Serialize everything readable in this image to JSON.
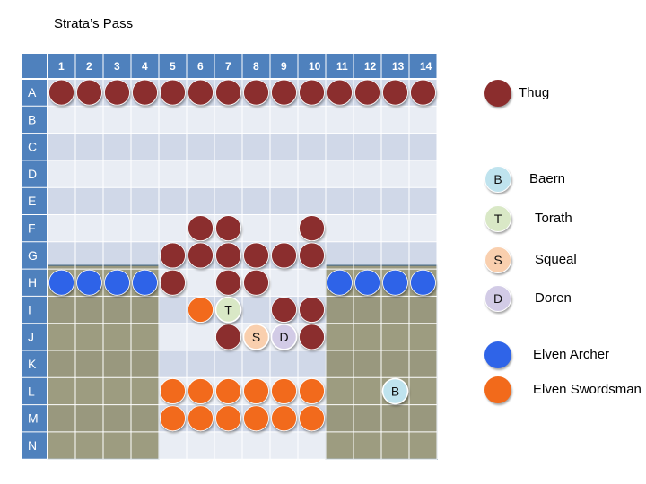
{
  "title": "Strata’s Pass",
  "columns": [
    "1",
    "2",
    "3",
    "4",
    "5",
    "6",
    "7",
    "8",
    "9",
    "10",
    "11",
    "12",
    "13",
    "14"
  ],
  "rows": [
    "A",
    "B",
    "C",
    "D",
    "E",
    "F",
    "G",
    "H",
    "I",
    "J",
    "K",
    "L",
    "M",
    "N"
  ],
  "colors": {
    "header": "#4f81bd",
    "header_text": "#ffffff",
    "band_dark": "#d0d8e8",
    "band_light": "#e9edf4",
    "grid_line": "#ffffff",
    "terrain": "#8c8a66",
    "terrain_border": "#4a6b86",
    "thug": "#8b2d2d",
    "archer": "#2f64e8",
    "swordsman": "#f26a1b",
    "baern": "#bfe3ee",
    "torath": "#d9e8c6",
    "squeal": "#f9cfae",
    "doren": "#d2cbe6"
  },
  "legend": [
    {
      "id": "thug",
      "letter": "",
      "label": "Thug",
      "color": "#8b2d2d"
    },
    {
      "id": "baern",
      "letter": "B",
      "label": "Baern",
      "color": "#bfe3ee"
    },
    {
      "id": "torath",
      "letter": "T",
      "label": "Torath",
      "color": "#d9e8c6"
    },
    {
      "id": "squeal",
      "letter": "S",
      "label": "Squeal",
      "color": "#f9cfae"
    },
    {
      "id": "doren",
      "letter": "D",
      "label": "Doren",
      "color": "#d2cbe6"
    },
    {
      "id": "archer",
      "letter": "",
      "label": "Elven Archer",
      "color": "#2f64e8"
    },
    {
      "id": "swordsman",
      "letter": "",
      "label": "Elven Swordsman",
      "color": "#f26a1b"
    }
  ],
  "terrain": [
    {
      "name": "left-rubble",
      "from_row": "H",
      "to_row": "N",
      "from_col": 1,
      "to_col": 4
    },
    {
      "name": "right-rubble",
      "from_row": "H",
      "to_row": "N",
      "from_col": 11,
      "to_col": 14
    }
  ],
  "tokens": [
    {
      "type": "thug",
      "row": "A",
      "col": 1
    },
    {
      "type": "thug",
      "row": "A",
      "col": 2
    },
    {
      "type": "thug",
      "row": "A",
      "col": 3
    },
    {
      "type": "thug",
      "row": "A",
      "col": 4
    },
    {
      "type": "thug",
      "row": "A",
      "col": 5
    },
    {
      "type": "thug",
      "row": "A",
      "col": 6
    },
    {
      "type": "thug",
      "row": "A",
      "col": 7
    },
    {
      "type": "thug",
      "row": "A",
      "col": 8
    },
    {
      "type": "thug",
      "row": "A",
      "col": 9
    },
    {
      "type": "thug",
      "row": "A",
      "col": 10
    },
    {
      "type": "thug",
      "row": "A",
      "col": 11
    },
    {
      "type": "thug",
      "row": "A",
      "col": 12
    },
    {
      "type": "thug",
      "row": "A",
      "col": 13
    },
    {
      "type": "thug",
      "row": "A",
      "col": 14
    },
    {
      "type": "thug",
      "row": "F",
      "col": 6
    },
    {
      "type": "thug",
      "row": "F",
      "col": 7
    },
    {
      "type": "thug",
      "row": "F",
      "col": 10
    },
    {
      "type": "thug",
      "row": "G",
      "col": 5
    },
    {
      "type": "thug",
      "row": "G",
      "col": 6
    },
    {
      "type": "thug",
      "row": "G",
      "col": 7
    },
    {
      "type": "thug",
      "row": "G",
      "col": 8
    },
    {
      "type": "thug",
      "row": "G",
      "col": 9
    },
    {
      "type": "thug",
      "row": "G",
      "col": 10
    },
    {
      "type": "thug",
      "row": "H",
      "col": 5
    },
    {
      "type": "thug",
      "row": "H",
      "col": 7
    },
    {
      "type": "thug",
      "row": "H",
      "col": 8
    },
    {
      "type": "thug",
      "row": "I",
      "col": 9
    },
    {
      "type": "thug",
      "row": "I",
      "col": 10
    },
    {
      "type": "thug",
      "row": "J",
      "col": 7
    },
    {
      "type": "thug",
      "row": "J",
      "col": 10
    },
    {
      "type": "archer",
      "row": "H",
      "col": 1
    },
    {
      "type": "archer",
      "row": "H",
      "col": 2
    },
    {
      "type": "archer",
      "row": "H",
      "col": 3
    },
    {
      "type": "archer",
      "row": "H",
      "col": 4
    },
    {
      "type": "archer",
      "row": "H",
      "col": 11
    },
    {
      "type": "archer",
      "row": "H",
      "col": 12
    },
    {
      "type": "archer",
      "row": "H",
      "col": 13
    },
    {
      "type": "archer",
      "row": "H",
      "col": 14
    },
    {
      "type": "swordsman",
      "row": "I",
      "col": 6
    },
    {
      "type": "swordsman",
      "row": "L",
      "col": 5
    },
    {
      "type": "swordsman",
      "row": "L",
      "col": 6
    },
    {
      "type": "swordsman",
      "row": "L",
      "col": 7
    },
    {
      "type": "swordsman",
      "row": "L",
      "col": 8
    },
    {
      "type": "swordsman",
      "row": "L",
      "col": 9
    },
    {
      "type": "swordsman",
      "row": "L",
      "col": 10
    },
    {
      "type": "swordsman",
      "row": "M",
      "col": 5
    },
    {
      "type": "swordsman",
      "row": "M",
      "col": 6
    },
    {
      "type": "swordsman",
      "row": "M",
      "col": 7
    },
    {
      "type": "swordsman",
      "row": "M",
      "col": 8
    },
    {
      "type": "swordsman",
      "row": "M",
      "col": 9
    },
    {
      "type": "swordsman",
      "row": "M",
      "col": 10
    },
    {
      "type": "torath",
      "row": "I",
      "col": 7,
      "letter": "T"
    },
    {
      "type": "squeal",
      "row": "J",
      "col": 8,
      "letter": "S"
    },
    {
      "type": "doren",
      "row": "J",
      "col": 9,
      "letter": "D"
    },
    {
      "type": "baern",
      "row": "L",
      "col": 13,
      "letter": "B"
    }
  ]
}
